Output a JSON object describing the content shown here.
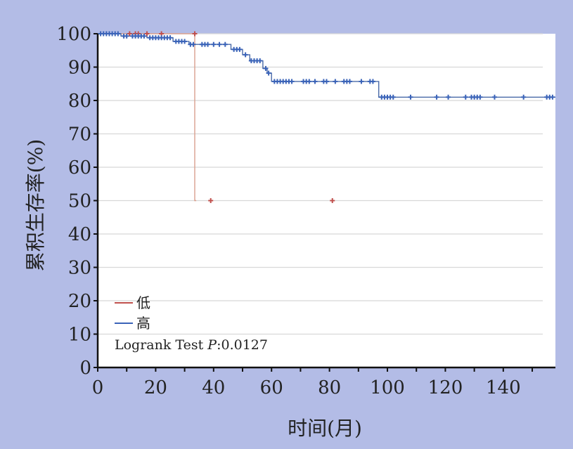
{
  "chart_data": {
    "type": "line",
    "subtype": "kaplan-meier",
    "xlabel": "时间(月)",
    "ylabel": "累积生存率(%)",
    "xlim": [
      0,
      158
    ],
    "ylim": [
      0,
      100
    ],
    "xticks": [
      0,
      20,
      40,
      60,
      80,
      100,
      120,
      140
    ],
    "yticks": [
      0,
      10,
      20,
      30,
      40,
      50,
      60,
      70,
      80,
      90,
      100
    ],
    "grid": "horizontal",
    "legend_position": "bottom-left",
    "annotation": {
      "prefix": "Logrank Test ",
      "p_symbol": "P",
      "value": ":0.0127"
    },
    "series": [
      {
        "name": "低",
        "color": "#c0504d",
        "line_color": "#d9a08e",
        "step": [
          [
            0,
            100
          ],
          [
            33.5,
            100
          ],
          [
            33.5,
            50
          ],
          [
            34,
            50
          ]
        ],
        "censored": [
          [
            11,
            100
          ],
          [
            13,
            100
          ],
          [
            14,
            100
          ],
          [
            17,
            100
          ],
          [
            22,
            100
          ],
          [
            33.5,
            100
          ],
          [
            39,
            50
          ],
          [
            81,
            50
          ]
        ]
      },
      {
        "name": "高",
        "color": "#3a63b8",
        "line_color": "#4a6aa8",
        "step": [
          [
            0,
            100
          ],
          [
            8,
            100
          ],
          [
            8,
            99.3
          ],
          [
            17,
            99.3
          ],
          [
            17,
            98.8
          ],
          [
            26,
            98.8
          ],
          [
            26,
            97.7
          ],
          [
            31.5,
            97.7
          ],
          [
            31.5,
            96.8
          ],
          [
            46,
            96.8
          ],
          [
            46,
            95.3
          ],
          [
            50,
            95.3
          ],
          [
            50,
            93.7
          ],
          [
            52.5,
            93.7
          ],
          [
            52.5,
            91.9
          ],
          [
            57,
            91.9
          ],
          [
            57,
            89.6
          ],
          [
            58.5,
            89.6
          ],
          [
            58.5,
            88.2
          ],
          [
            60,
            88.2
          ],
          [
            60,
            85.7
          ],
          [
            97,
            85.7
          ],
          [
            97,
            81
          ],
          [
            158,
            81
          ]
        ],
        "censored": [
          [
            1,
            100
          ],
          [
            2,
            100
          ],
          [
            3,
            100
          ],
          [
            4,
            100
          ],
          [
            5,
            100
          ],
          [
            6,
            100
          ],
          [
            7,
            100
          ],
          [
            9,
            99.3
          ],
          [
            10,
            99.3
          ],
          [
            12,
            99.3
          ],
          [
            13,
            99.3
          ],
          [
            14,
            99.3
          ],
          [
            15,
            99.3
          ],
          [
            16,
            99.3
          ],
          [
            18,
            98.8
          ],
          [
            19,
            98.8
          ],
          [
            20,
            98.8
          ],
          [
            21,
            98.8
          ],
          [
            22,
            98.8
          ],
          [
            23,
            98.8
          ],
          [
            24,
            98.8
          ],
          [
            25,
            98.8
          ],
          [
            27,
            97.7
          ],
          [
            28,
            97.7
          ],
          [
            29,
            97.7
          ],
          [
            30,
            97.7
          ],
          [
            32,
            96.8
          ],
          [
            33,
            96.8
          ],
          [
            36,
            96.8
          ],
          [
            37,
            96.8
          ],
          [
            38,
            96.8
          ],
          [
            40,
            96.8
          ],
          [
            42,
            96.8
          ],
          [
            44,
            96.8
          ],
          [
            47,
            95.3
          ],
          [
            48,
            95.3
          ],
          [
            49,
            95.3
          ],
          [
            51,
            93.7
          ],
          [
            53,
            91.9
          ],
          [
            54,
            91.9
          ],
          [
            55,
            91.9
          ],
          [
            56,
            91.9
          ],
          [
            58,
            89.6
          ],
          [
            59,
            88.2
          ],
          [
            61,
            85.7
          ],
          [
            62,
            85.7
          ],
          [
            63,
            85.7
          ],
          [
            64,
            85.7
          ],
          [
            65,
            85.7
          ],
          [
            66,
            85.7
          ],
          [
            67,
            85.7
          ],
          [
            71,
            85.7
          ],
          [
            72,
            85.7
          ],
          [
            73,
            85.7
          ],
          [
            75,
            85.7
          ],
          [
            78,
            85.7
          ],
          [
            79,
            85.7
          ],
          [
            82,
            85.7
          ],
          [
            85,
            85.7
          ],
          [
            86,
            85.7
          ],
          [
            87,
            85.7
          ],
          [
            91,
            85.7
          ],
          [
            94,
            85.7
          ],
          [
            95,
            85.7
          ],
          [
            98,
            81
          ],
          [
            99,
            81
          ],
          [
            100,
            81
          ],
          [
            101,
            81
          ],
          [
            102,
            81
          ],
          [
            108,
            81
          ],
          [
            117,
            81
          ],
          [
            121,
            81
          ],
          [
            127,
            81
          ],
          [
            129,
            81
          ],
          [
            130,
            81
          ],
          [
            131,
            81
          ],
          [
            132,
            81
          ],
          [
            137,
            81
          ],
          [
            147,
            81
          ],
          [
            155,
            81
          ],
          [
            156,
            81
          ],
          [
            157,
            81
          ]
        ]
      }
    ]
  },
  "style": {
    "background": "#b3bce6",
    "plot_background": "#ffffff",
    "grid_color": "#d8d8d8",
    "axis_color": "#111111"
  }
}
